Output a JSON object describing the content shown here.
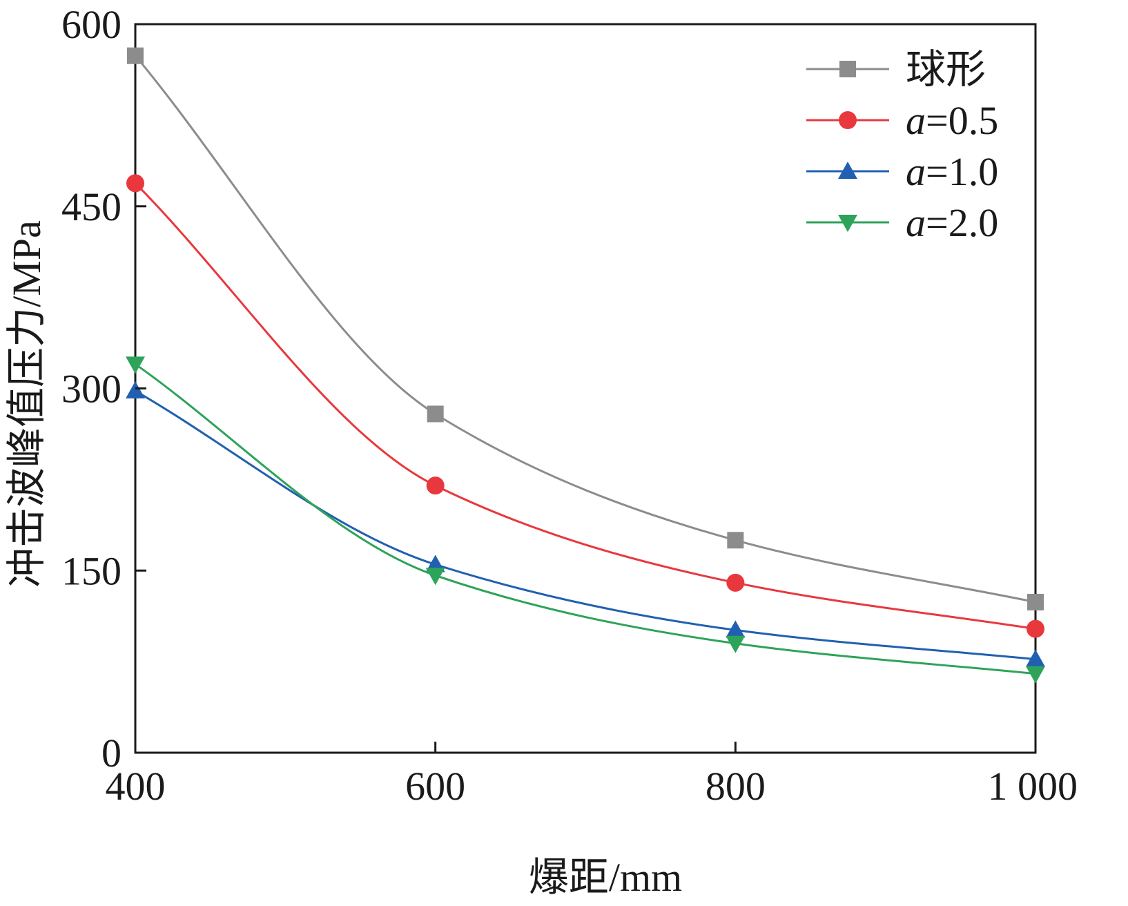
{
  "chart_data": {
    "type": "line",
    "title": "",
    "xlabel": "爆距/mm",
    "ylabel": "冲击波峰值压力/MPa",
    "x": [
      400,
      600,
      800,
      1000
    ],
    "xlim": [
      400,
      1000
    ],
    "ylim": [
      0,
      600
    ],
    "x_tick_values": [
      400,
      600,
      800,
      1000
    ],
    "x_tick_labels": [
      "400",
      "600",
      "800",
      "1 000"
    ],
    "y_tick_values": [
      0,
      150,
      300,
      450,
      600
    ],
    "y_tick_labels": [
      "0",
      "150",
      "300",
      "450",
      "600"
    ],
    "grid": false,
    "legend_position": "top-right",
    "series": [
      {
        "name": "球形",
        "name_prefix": "",
        "name_suffix": "",
        "color": "#8c8c8c",
        "marker": "square",
        "values": [
          574,
          279,
          175,
          124
        ]
      },
      {
        "name": "a=0.5",
        "name_prefix": "a",
        "name_suffix": "=0.5",
        "color": "#e8383d",
        "marker": "circle",
        "values": [
          469,
          220,
          140,
          102
        ]
      },
      {
        "name": "a=1.0",
        "name_prefix": "a",
        "name_suffix": "=1.0",
        "color": "#2160b0",
        "marker": "triangle-up",
        "values": [
          298,
          155,
          101,
          77
        ]
      },
      {
        "name": "a=2.0",
        "name_prefix": "a",
        "name_suffix": "=2.0",
        "color": "#2ea35a",
        "marker": "triangle-down",
        "values": [
          320,
          146,
          90,
          65
        ]
      }
    ]
  }
}
